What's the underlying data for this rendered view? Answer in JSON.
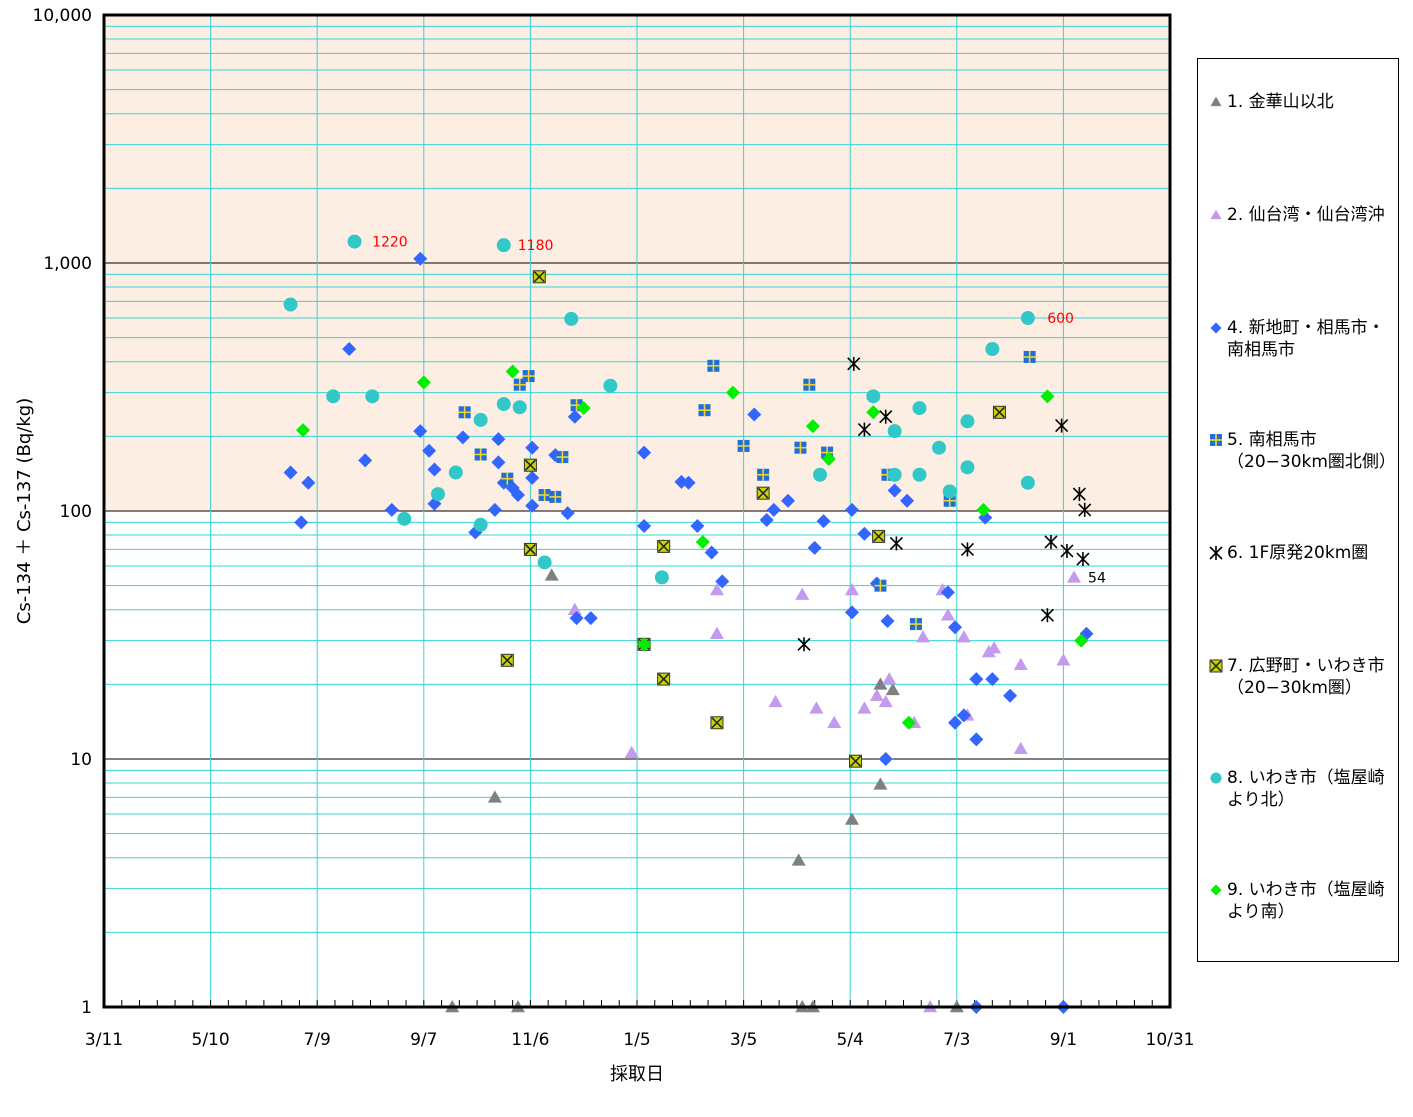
{
  "chart_data": {
    "type": "scatter",
    "title": "",
    "xlabel": "採取日",
    "ylabel": "Cs-134 ＋ Cs-137 (Bq/kg)",
    "yscale": "log",
    "ylim": [
      1,
      10000
    ],
    "xlim": [
      "2011-03-11",
      "2012-10-31"
    ],
    "x_ticks": [
      "3/11",
      "5/10",
      "7/9",
      "9/7",
      "11/6",
      "1/5",
      "3/5",
      "5/4",
      "7/3",
      "9/1",
      "10/31"
    ],
    "y_ticks": [
      "1",
      "10",
      "100",
      "1,000",
      "10,000"
    ],
    "highlight_band": {
      "from": 100,
      "to": 10000,
      "color": "#fdeee3"
    },
    "grid": true,
    "legend_position": "right",
    "colors": {
      "grid": "#36d4d4",
      "major_grid": "#000000",
      "annotation": "#ff0000"
    },
    "annotations": [
      {
        "text": "1220",
        "x": "2011-08-01",
        "y": 1220,
        "color": "#ff0000"
      },
      {
        "text": "1180",
        "x": "2011-10-22",
        "y": 1180,
        "color": "#ff0000"
      },
      {
        "text": "600",
        "x": "2012-08-15",
        "y": 600,
        "color": "#ff0000"
      },
      {
        "text": "54",
        "x": "2012-09-07",
        "y": 54,
        "color": "#000000"
      }
    ],
    "series": [
      {
        "name": "1. 金華山以北",
        "marker": "triangle",
        "color": "#808080",
        "points": [
          [
            "2011-09-23",
            1
          ],
          [
            "2011-10-30",
            1
          ],
          [
            "2012-04-07",
            1
          ],
          [
            "2012-04-13",
            1
          ],
          [
            "2012-07-03",
            1
          ],
          [
            "2011-10-17",
            7
          ],
          [
            "2011-11-18",
            55
          ],
          [
            "2012-04-05",
            3.9
          ],
          [
            "2012-05-05",
            5.7
          ],
          [
            "2012-05-21",
            7.9
          ],
          [
            "2012-05-21",
            20
          ],
          [
            "2012-05-28",
            19
          ]
        ]
      },
      {
        "name": "2. 仙台湾・仙台湾沖",
        "marker": "triangle",
        "color": "#c49aef",
        "points": [
          [
            "2011-12-01",
            40
          ],
          [
            "2012-01-02",
            10.6
          ],
          [
            "2012-02-19",
            48
          ],
          [
            "2012-02-19",
            32
          ],
          [
            "2012-03-23",
            17
          ],
          [
            "2012-04-07",
            46
          ],
          [
            "2012-04-15",
            16
          ],
          [
            "2012-04-25",
            14
          ],
          [
            "2012-05-05",
            48
          ],
          [
            "2012-05-12",
            16
          ],
          [
            "2012-05-19",
            18
          ],
          [
            "2012-05-26",
            21
          ],
          [
            "2012-05-24",
            17
          ],
          [
            "2012-06-09",
            14
          ],
          [
            "2012-06-14",
            31
          ],
          [
            "2012-06-25",
            48
          ],
          [
            "2012-06-28",
            38
          ],
          [
            "2012-07-07",
            31
          ],
          [
            "2012-07-09",
            15
          ],
          [
            "2012-07-21",
            27
          ],
          [
            "2012-07-24",
            28
          ],
          [
            "2012-08-08",
            24
          ],
          [
            "2012-08-08",
            11
          ],
          [
            "2012-09-01",
            25
          ],
          [
            "2012-09-07",
            54
          ],
          [
            "2012-06-18",
            1
          ]
        ]
      },
      {
        "name": "4. 新地町・相馬市・南相馬市",
        "marker": "diamond",
        "color": "#3366ff",
        "points": [
          [
            "2011-06-24",
            143
          ],
          [
            "2011-06-30",
            90
          ],
          [
            "2011-07-04",
            130
          ],
          [
            "2011-07-27",
            450
          ],
          [
            "2011-08-05",
            160
          ],
          [
            "2011-08-20",
            101
          ],
          [
            "2011-09-05",
            1040
          ],
          [
            "2011-09-05",
            210
          ],
          [
            "2011-09-10",
            175
          ],
          [
            "2011-09-13",
            147
          ],
          [
            "2011-09-13",
            107
          ],
          [
            "2011-09-29",
            198
          ],
          [
            "2011-10-06",
            82
          ],
          [
            "2011-10-17",
            101
          ],
          [
            "2011-10-19",
            195
          ],
          [
            "2011-10-19",
            157
          ],
          [
            "2011-10-22",
            130
          ],
          [
            "2011-10-27",
            124
          ],
          [
            "2011-10-30",
            116
          ],
          [
            "2011-11-07",
            180
          ],
          [
            "2011-11-07",
            136
          ],
          [
            "2011-11-07",
            105
          ],
          [
            "2011-11-20",
            168
          ],
          [
            "2011-11-27",
            98
          ],
          [
            "2011-12-01",
            240
          ],
          [
            "2011-12-02",
            37
          ],
          [
            "2011-12-10",
            37
          ],
          [
            "2012-01-09",
            172
          ],
          [
            "2012-01-09",
            87
          ],
          [
            "2012-01-20",
            72
          ],
          [
            "2012-01-30",
            131
          ],
          [
            "2012-02-03",
            130
          ],
          [
            "2012-02-08",
            87
          ],
          [
            "2012-02-16",
            68
          ],
          [
            "2012-02-22",
            52
          ],
          [
            "2012-03-11",
            245
          ],
          [
            "2012-03-18",
            92
          ],
          [
            "2012-03-22",
            101
          ],
          [
            "2012-03-30",
            110
          ],
          [
            "2012-04-14",
            71
          ],
          [
            "2012-04-19",
            91
          ],
          [
            "2012-05-05",
            101
          ],
          [
            "2012-05-05",
            39
          ],
          [
            "2012-05-12",
            81
          ],
          [
            "2012-05-19",
            51
          ],
          [
            "2012-05-24",
            10
          ],
          [
            "2012-05-25",
            36
          ],
          [
            "2012-05-29",
            121
          ],
          [
            "2012-06-05",
            110
          ],
          [
            "2012-06-28",
            47
          ],
          [
            "2012-07-02",
            34
          ],
          [
            "2012-07-02",
            14
          ],
          [
            "2012-07-07",
            15
          ],
          [
            "2012-07-14",
            21
          ],
          [
            "2012-07-14",
            12
          ],
          [
            "2012-07-19",
            94
          ],
          [
            "2012-07-23",
            21
          ],
          [
            "2012-08-02",
            18
          ],
          [
            "2012-09-14",
            32
          ],
          [
            "2012-07-14",
            1
          ],
          [
            "2012-09-01",
            1
          ]
        ]
      },
      {
        "name": "5. 南相馬市（20−30km圏北側）",
        "marker": "square",
        "color": "#1f6fd8",
        "points": [
          [
            "2011-09-30",
            250
          ],
          [
            "2011-10-09",
            169
          ],
          [
            "2011-10-24",
            135
          ],
          [
            "2011-10-31",
            323
          ],
          [
            "2011-11-05",
            350
          ],
          [
            "2011-11-14",
            116
          ],
          [
            "2011-11-20",
            114
          ],
          [
            "2011-11-24",
            165
          ],
          [
            "2011-12-02",
            267
          ],
          [
            "2012-02-17",
            385
          ],
          [
            "2012-02-12",
            255
          ],
          [
            "2012-03-05",
            183
          ],
          [
            "2012-03-16",
            140
          ],
          [
            "2012-04-06",
            180
          ],
          [
            "2012-04-11",
            323
          ],
          [
            "2012-04-21",
            172
          ],
          [
            "2012-05-21",
            50
          ],
          [
            "2012-05-25",
            140
          ],
          [
            "2012-06-10",
            35
          ],
          [
            "2012-06-29",
            110
          ],
          [
            "2012-08-13",
            418
          ]
        ]
      },
      {
        "name": "6. 1F原発20km圏",
        "marker": "asterisk",
        "color": "#000000",
        "points": [
          [
            "2012-05-06",
            392
          ],
          [
            "2012-05-12",
            213
          ],
          [
            "2012-05-24",
            240
          ],
          [
            "2012-05-30",
            74
          ],
          [
            "2012-07-09",
            70
          ],
          [
            "2012-08-25",
            75
          ],
          [
            "2012-09-03",
            69
          ],
          [
            "2012-04-08",
            29
          ],
          [
            "2012-08-23",
            38
          ],
          [
            "2012-08-31",
            221
          ],
          [
            "2012-09-10",
            117
          ],
          [
            "2012-09-13",
            101
          ],
          [
            "2012-09-12",
            64
          ]
        ]
      },
      {
        "name": "7. 広野町・いわき市（20−30km圏）",
        "marker": "square-x",
        "color": "#c8d400",
        "points": [
          [
            "2011-11-11",
            880
          ],
          [
            "2011-11-06",
            153
          ],
          [
            "2011-11-06",
            70
          ],
          [
            "2011-10-24",
            25
          ],
          [
            "2012-01-09",
            29
          ],
          [
            "2012-01-20",
            72
          ],
          [
            "2012-01-20",
            21
          ],
          [
            "2012-02-19",
            14
          ],
          [
            "2012-03-16",
            118
          ],
          [
            "2012-05-07",
            9.8
          ],
          [
            "2012-05-20",
            79
          ],
          [
            "2012-07-27",
            250
          ]
        ]
      },
      {
        "name": "8. いわき市（塩屋崎より北）",
        "marker": "circle",
        "color": "#33c8c8",
        "points": [
          [
            "2011-06-24",
            680
          ],
          [
            "2011-07-18",
            290
          ],
          [
            "2011-07-30",
            1220
          ],
          [
            "2011-08-09",
            290
          ],
          [
            "2011-08-27",
            93
          ],
          [
            "2011-09-15",
            117
          ],
          [
            "2011-09-25",
            143
          ],
          [
            "2011-10-09",
            233
          ],
          [
            "2011-10-09",
            88
          ],
          [
            "2011-10-22",
            1180
          ],
          [
            "2011-10-31",
            262
          ],
          [
            "2011-10-22",
            270
          ],
          [
            "2011-11-14",
            62
          ],
          [
            "2011-11-29",
            595
          ],
          [
            "2011-12-21",
            320
          ],
          [
            "2012-01-19",
            54
          ],
          [
            "2012-04-17",
            140
          ],
          [
            "2012-05-17",
            290
          ],
          [
            "2012-05-29",
            210
          ],
          [
            "2012-05-29",
            140
          ],
          [
            "2012-06-12",
            260
          ],
          [
            "2012-06-12",
            140
          ],
          [
            "2012-06-23",
            180
          ],
          [
            "2012-06-29",
            120
          ],
          [
            "2012-07-09",
            230
          ],
          [
            "2012-07-09",
            150
          ],
          [
            "2012-07-23",
            450
          ],
          [
            "2012-08-12",
            130
          ],
          [
            "2012-08-12",
            600
          ]
        ]
      },
      {
        "name": "9. いわき市（塩屋崎より南）",
        "marker": "diamond",
        "color": "#00ee00",
        "points": [
          [
            "2011-07-01",
            212
          ],
          [
            "2011-09-07",
            330
          ],
          [
            "2011-10-27",
            365
          ],
          [
            "2011-12-06",
            260
          ],
          [
            "2012-01-09",
            29
          ],
          [
            "2012-02-11",
            75
          ],
          [
            "2012-02-28",
            300
          ],
          [
            "2012-04-13",
            220
          ],
          [
            "2012-04-22",
            162
          ],
          [
            "2012-05-17",
            250
          ],
          [
            "2012-06-06",
            14
          ],
          [
            "2012-07-18",
            101
          ],
          [
            "2012-08-23",
            290
          ],
          [
            "2012-09-11",
            30
          ]
        ]
      }
    ]
  }
}
